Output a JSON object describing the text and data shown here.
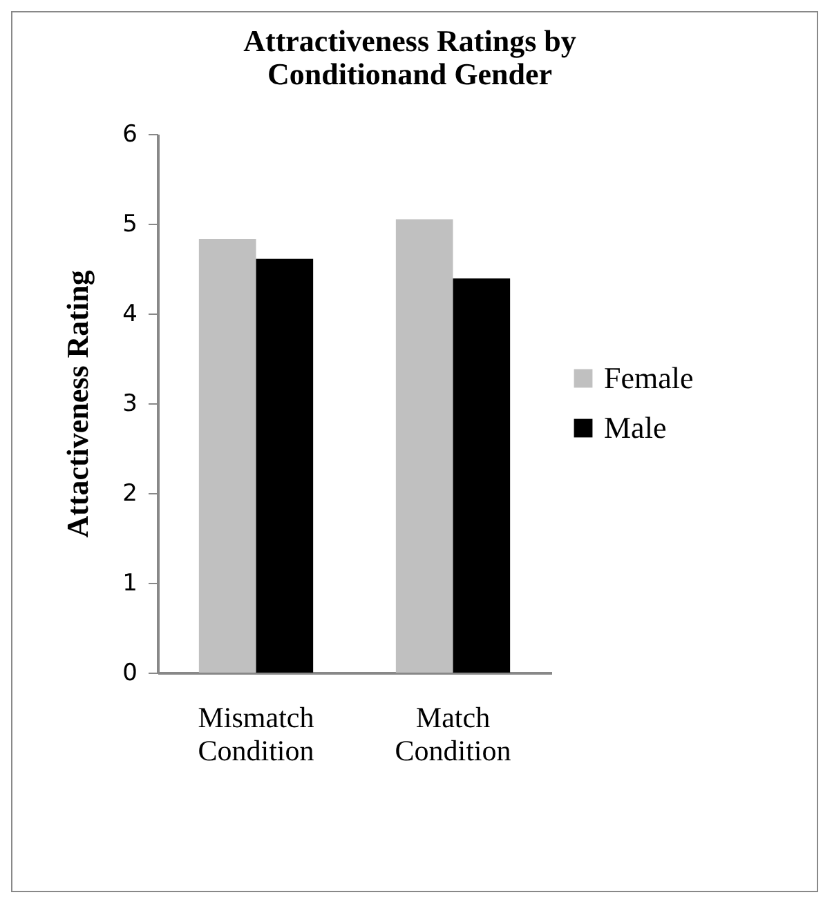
{
  "chart_data": {
    "type": "bar",
    "title": "Attractiveness Ratings by Conditionand Gender",
    "ylabel": "Attactiveness Rating",
    "categories": [
      "Mismatch Condition",
      "Match Condition"
    ],
    "series": [
      {
        "name": "Female",
        "color": "#c0c0c0",
        "values": [
          4.83,
          5.05
        ]
      },
      {
        "name": "Male",
        "color": "#000000",
        "values": [
          4.61,
          4.39
        ]
      }
    ],
    "ylim": [
      0,
      6
    ],
    "yticks": [
      0,
      1,
      2,
      3,
      4,
      5,
      6
    ],
    "grid": false,
    "legend": "right"
  }
}
